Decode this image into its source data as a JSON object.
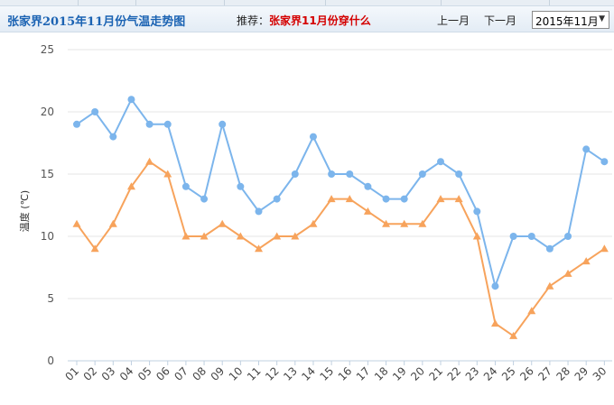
{
  "header": {
    "title": "张家界2015年11月份气温走势图",
    "recommend_label": "推荐：",
    "recommend_link": "张家界11月份穿什么",
    "prev_label": "上一月",
    "next_label": "下一月",
    "month_selected": "2015年11月"
  },
  "colors": {
    "high_series": "#7cb5ec",
    "low_series": "#f7a35c",
    "title": "#1b63b3",
    "link": "#d40000",
    "grid": "#e6e6e6"
  },
  "chart_data": {
    "type": "line",
    "title": "",
    "xlabel": "",
    "ylabel": "温度 (℃)",
    "ylim": [
      0,
      25
    ],
    "yticks": [
      0,
      5,
      10,
      15,
      20,
      25
    ],
    "grid": true,
    "categories": [
      "01",
      "02",
      "03",
      "04",
      "05",
      "06",
      "07",
      "08",
      "09",
      "10",
      "11",
      "12",
      "13",
      "14",
      "15",
      "16",
      "17",
      "18",
      "19",
      "20",
      "21",
      "22",
      "23",
      "24",
      "25",
      "26",
      "27",
      "28",
      "29",
      "30"
    ],
    "series": [
      {
        "color": "#7cb5ec",
        "marker": "circle",
        "values": [
          19,
          20,
          18,
          21,
          19,
          19,
          14,
          13,
          19,
          14,
          12,
          13,
          15,
          18,
          15,
          15,
          14,
          13,
          13,
          15,
          16,
          15,
          12,
          6,
          10,
          10,
          9,
          10,
          17,
          16
        ]
      },
      {
        "color": "#f7a35c",
        "marker": "triangle",
        "values": [
          11,
          9,
          11,
          14,
          16,
          15,
          10,
          10,
          11,
          10,
          9,
          10,
          10,
          11,
          13,
          13,
          12,
          11,
          11,
          11,
          13,
          13,
          10,
          3,
          2,
          4,
          6,
          7,
          8,
          9
        ]
      }
    ]
  }
}
